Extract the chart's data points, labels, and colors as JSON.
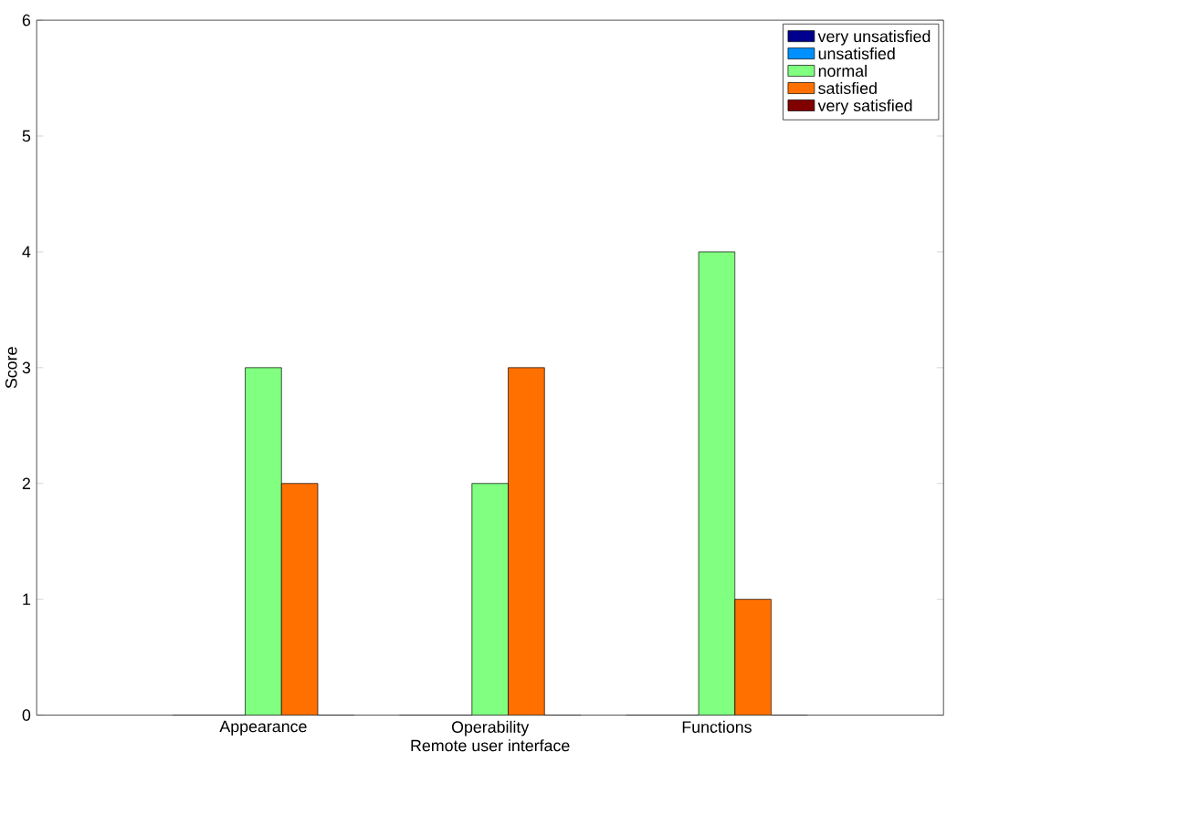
{
  "chart_data": {
    "type": "bar",
    "xlabel": "Remote user interface",
    "ylabel": "Score",
    "categories": [
      "Appearance",
      "Operability",
      "Functions"
    ],
    "series": [
      {
        "name": "very unsatisfied",
        "color": "#00008f",
        "values": [
          0,
          0,
          0
        ]
      },
      {
        "name": "unsatisfied",
        "color": "#0090ff",
        "values": [
          0,
          0,
          0
        ]
      },
      {
        "name": "normal",
        "color": "#80ff80",
        "values": [
          3,
          2,
          4
        ]
      },
      {
        "name": "satisfied",
        "color": "#ff7000",
        "values": [
          2,
          3,
          1
        ]
      },
      {
        "name": "very satisfied",
        "color": "#800000",
        "values": [
          0,
          0,
          0
        ]
      }
    ],
    "ylim": [
      0,
      6
    ],
    "yticks": [
      0,
      1,
      2,
      3,
      4,
      5,
      6
    ],
    "grid": false,
    "legend": "top right"
  }
}
